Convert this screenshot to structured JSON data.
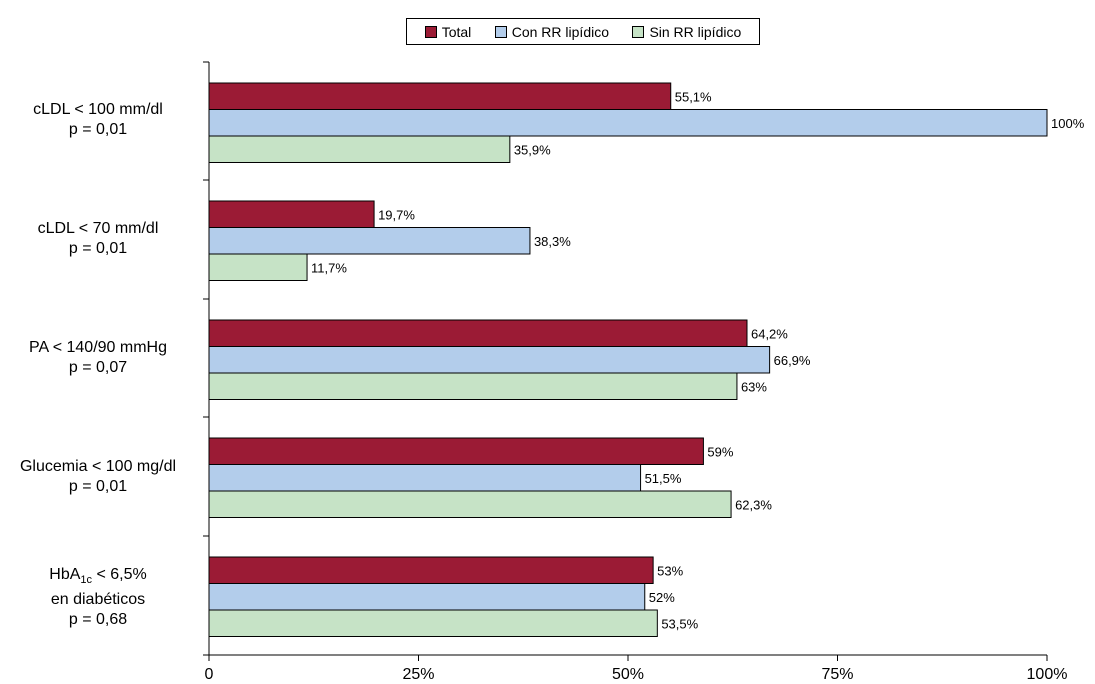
{
  "chart_data": {
    "type": "bar",
    "orientation": "horizontal",
    "categories": [
      {
        "label_lines": [
          "cLDL < 100 mm/dl",
          "p = 0,01"
        ]
      },
      {
        "label_lines": [
          "cLDL < 70 mm/dl",
          "p = 0,01"
        ]
      },
      {
        "label_lines": [
          "PA < 140/90 mmHg",
          "p = 0,07"
        ]
      },
      {
        "label_lines": [
          "Glucemia < 100 mg/dl",
          "p = 0,01"
        ]
      },
      {
        "label_lines": [
          "HbA",
          "1c",
          " < 6,5%",
          "en diabéticos",
          "p = 0,68"
        ]
      }
    ],
    "series": [
      {
        "name": "Total",
        "color": "#9B1B35",
        "values": [
          55.1,
          19.7,
          64.2,
          59,
          53
        ],
        "labels": [
          "55,1%",
          "19,7%",
          "64,2%",
          "59%",
          "53%"
        ]
      },
      {
        "name": "Con RR lipídico",
        "color": "#B3CDEB",
        "values": [
          100,
          38.3,
          66.9,
          51.5,
          52
        ],
        "labels": [
          "100%",
          "38,3%",
          "66,9%",
          "51,5%",
          "52%"
        ]
      },
      {
        "name": "Sin RR lipídico",
        "color": "#C6E3C6",
        "values": [
          35.9,
          11.7,
          63,
          62.3,
          53.5
        ],
        "labels": [
          "35,9%",
          "11,7%",
          "63%",
          "62,3%",
          "53,5%"
        ]
      }
    ],
    "xlim": [
      0,
      100
    ],
    "xticks": [
      0,
      25,
      50,
      75,
      100
    ],
    "xtick_labels": [
      "0",
      "25%",
      "50%",
      "75%",
      "100%"
    ],
    "legend_position": "top-center",
    "grid": false
  }
}
